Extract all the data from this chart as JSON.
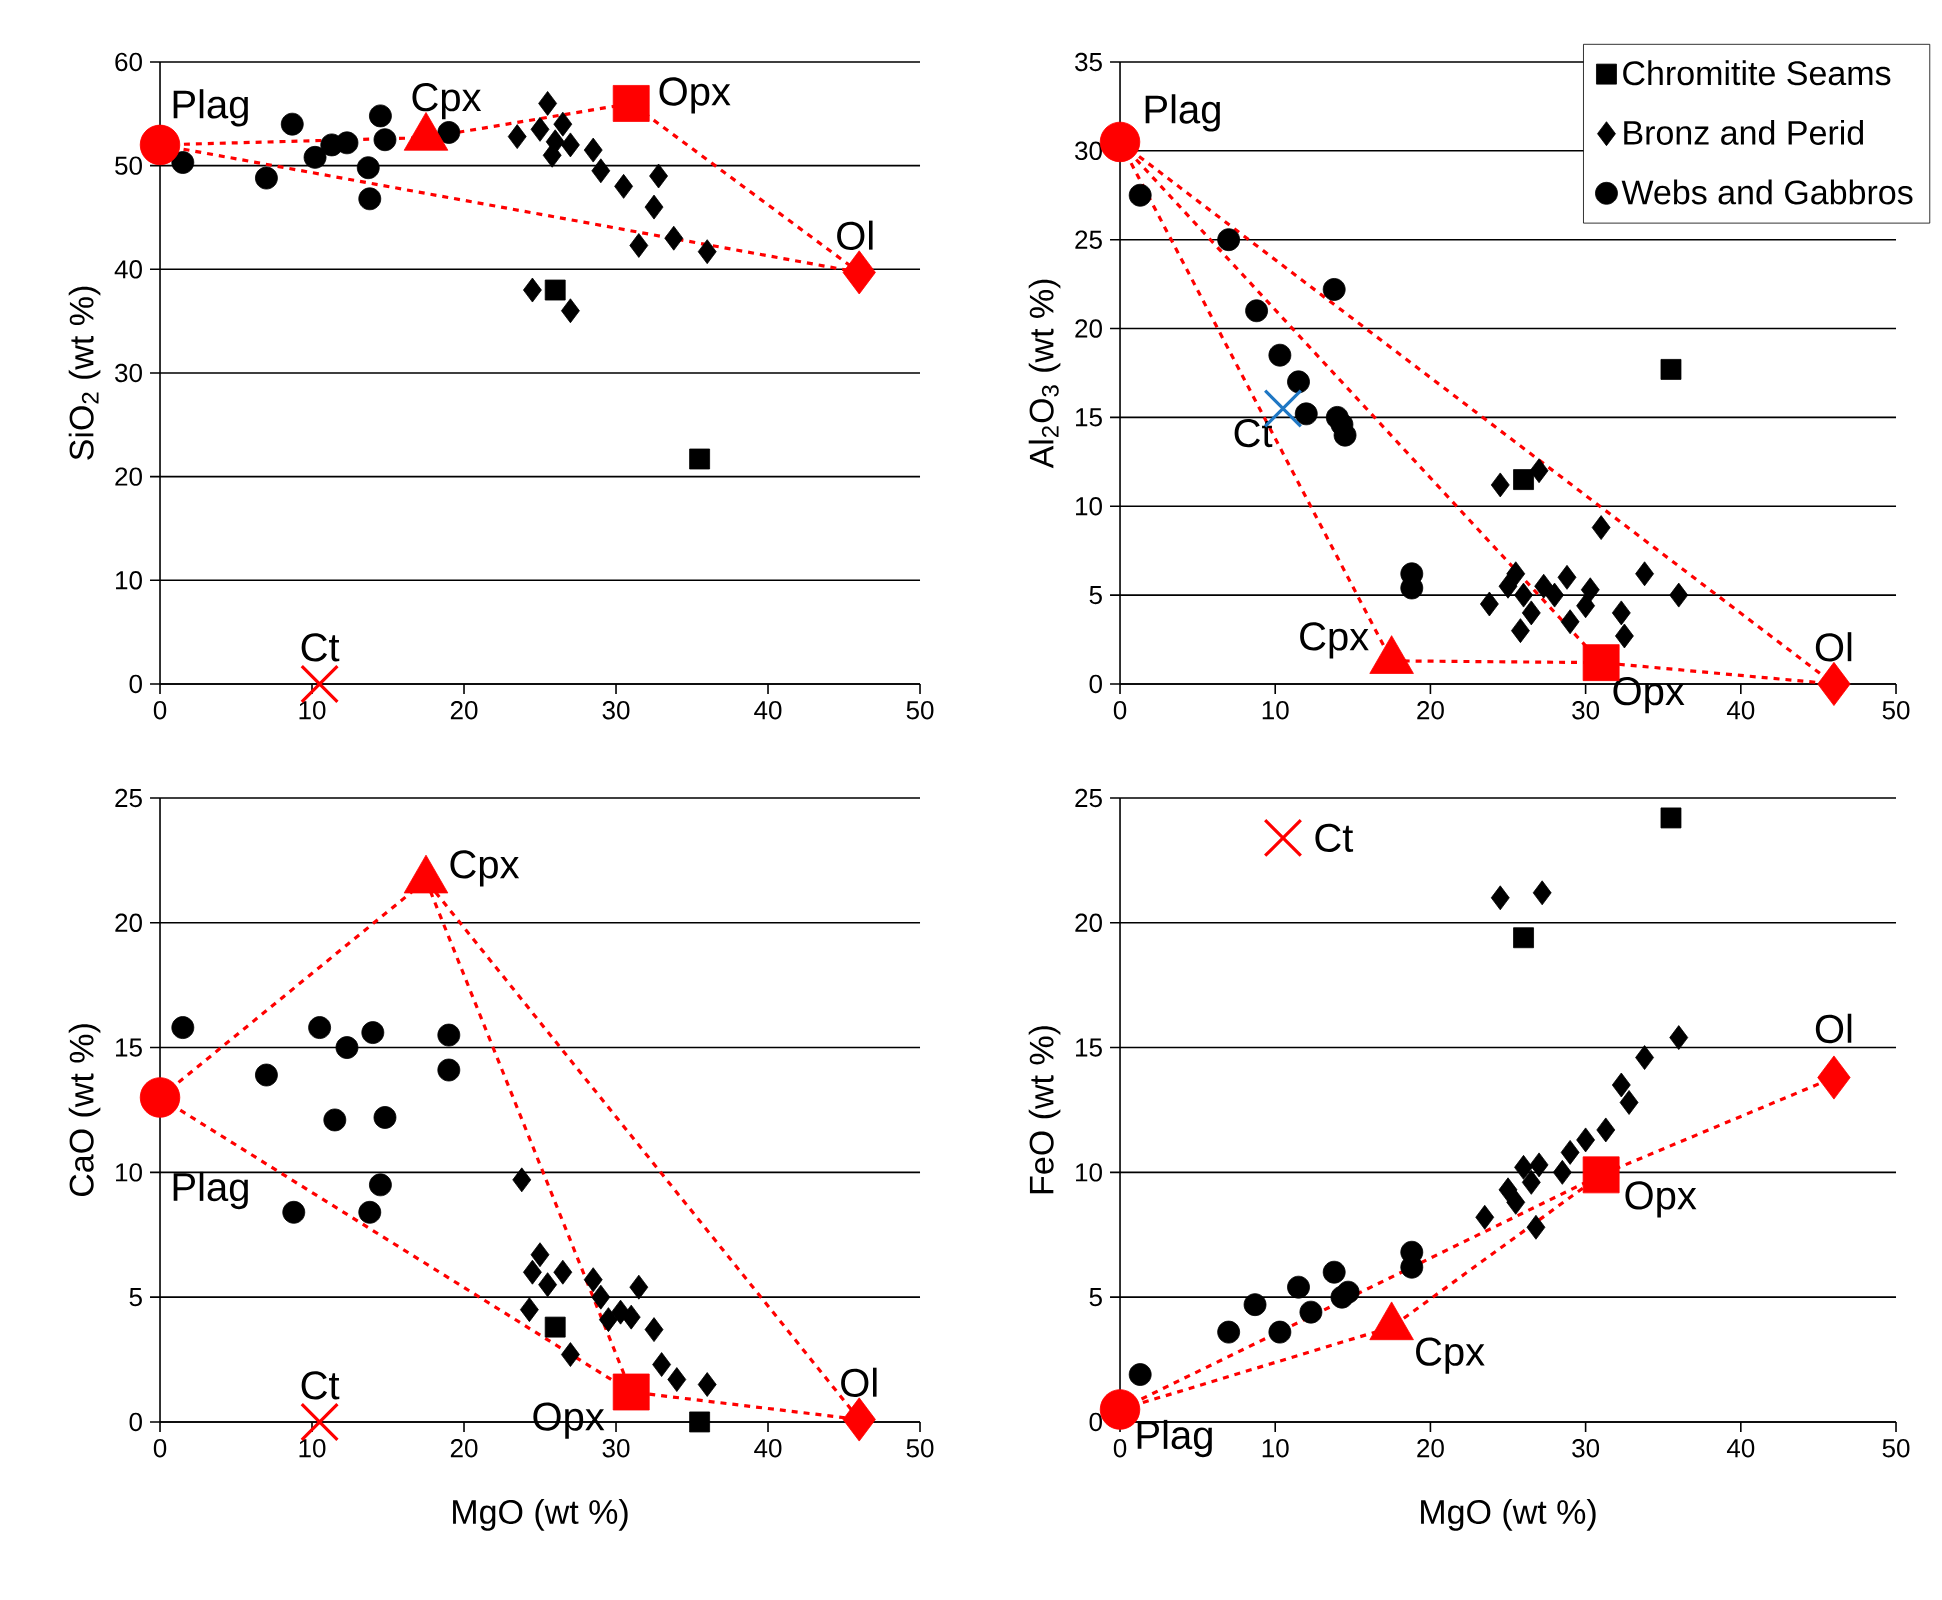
{
  "chart_data": [
    {
      "type": "scatter",
      "ylabel": "SiO$_{2}$ (wt %)",
      "xlim": [
        0,
        50
      ],
      "xticks": [
        0,
        10,
        20,
        30,
        40,
        50
      ],
      "ylim": [
        0,
        60
      ],
      "yticks": [
        0,
        10,
        20,
        30,
        40,
        50,
        60
      ],
      "grid": "y",
      "series": [
        {
          "type": "scatter",
          "marker": "square",
          "color": "#000000",
          "x": [
            26,
            35.5
          ],
          "values": [
            38,
            21.7
          ]
        },
        {
          "type": "scatter",
          "marker": "diamond",
          "color": "#000000",
          "x": [
            23.5,
            24.5,
            25,
            25.5,
            25.8,
            26,
            26.5,
            27,
            27,
            28.5,
            29,
            30.5,
            31.5,
            32.5,
            32.8,
            33.8,
            36
          ],
          "values": [
            52.8,
            38,
            53.5,
            56,
            51,
            52.3,
            54,
            36,
            52,
            51.5,
            49.5,
            48,
            42.3,
            46,
            49,
            43,
            41.7
          ]
        },
        {
          "type": "scatter",
          "marker": "circle",
          "color": "#000000",
          "x": [
            1.5,
            7,
            8.7,
            10.2,
            11.3,
            12.3,
            13.7,
            13.8,
            14.5,
            14.8,
            19
          ],
          "values": [
            50.3,
            48.8,
            54,
            50.8,
            52,
            52.2,
            49.8,
            46.8,
            54.8,
            52.5,
            53.2
          ]
        },
        {
          "type": "line",
          "line_style": "dashed",
          "marker": "none",
          "color": "#ff0000",
          "x": [
            0,
            17.5,
            31,
            46
          ],
          "values": [
            52,
            52.7,
            56,
            39.7
          ]
        },
        {
          "type": "line",
          "line_style": "dashed",
          "marker": "none",
          "color": "#ff0000",
          "x": [
            0,
            46
          ],
          "values": [
            52,
            39.7
          ]
        },
        {
          "type": "scatter",
          "marker": "circle",
          "color": "#ff0000",
          "x": [
            0
          ],
          "values": [
            52
          ]
        },
        {
          "type": "scatter",
          "marker": "triangle",
          "color": "#ff0000",
          "x": [
            17.5
          ],
          "values": [
            52.7
          ]
        },
        {
          "type": "scatter",
          "marker": "square",
          "color": "#ff0000",
          "x": [
            31
          ],
          "values": [
            56
          ]
        },
        {
          "type": "scatter",
          "marker": "diamond",
          "color": "#ff0000",
          "x": [
            46
          ],
          "values": [
            39.7
          ]
        },
        {
          "type": "scatter",
          "marker": "cross",
          "color": "#ff0000",
          "x": [
            10.5
          ],
          "values": [
            0
          ]
        }
      ],
      "annotations": [
        {
          "text": "Plag",
          "x": 0,
          "y": 52
        },
        {
          "text": "Cpx",
          "x": 17.5,
          "y": 52.7
        },
        {
          "text": "Opx",
          "x": 31,
          "y": 56
        },
        {
          "text": "Ol",
          "x": 46,
          "y": 39.7
        },
        {
          "text": "Ct",
          "x": 10.5,
          "y": 0
        }
      ]
    },
    {
      "type": "scatter",
      "ylabel": "Al$_{2}$O$_{3}$ (wt %)",
      "xlim": [
        0,
        50
      ],
      "xticks": [
        0,
        10,
        20,
        30,
        40,
        50
      ],
      "ylim": [
        0,
        35
      ],
      "yticks": [
        0,
        5,
        10,
        15,
        20,
        25,
        30,
        35
      ],
      "grid": "y",
      "legend": "top right",
      "series": [
        {
          "name": "Chromitite Seams",
          "type": "scatter",
          "marker": "square",
          "color": "#000000",
          "x": [
            26,
            35.5
          ],
          "values": [
            11.5,
            17.7
          ]
        },
        {
          "name": "Bronz and Perid",
          "type": "scatter",
          "marker": "diamond",
          "color": "#000000",
          "x": [
            24.5,
            27,
            31,
            33.8,
            36,
            23.8,
            25,
            25.5,
            25.8,
            26.5,
            27.3,
            28.8,
            29,
            30,
            30.3,
            32.3,
            32.5,
            26,
            28
          ],
          "values": [
            11.2,
            12,
            8.8,
            6.2,
            5,
            4.5,
            5.5,
            6.2,
            3,
            4,
            5.5,
            6,
            3.5,
            4.4,
            5.3,
            4,
            2.7,
            5,
            5
          ]
        },
        {
          "name": "Webs and Gabbros",
          "type": "scatter",
          "marker": "circle",
          "color": "#000000",
          "x": [
            1.3,
            7,
            8.8,
            10.3,
            11.5,
            12,
            13.8,
            14,
            14.3,
            14.5,
            18.8,
            18.8
          ],
          "values": [
            27.5,
            25,
            21,
            18.5,
            17,
            15.2,
            22.2,
            15,
            14.6,
            14,
            6.2,
            5.4
          ]
        },
        {
          "type": "line",
          "line_style": "dashed",
          "marker": "none",
          "color": "#ff0000",
          "x": [
            0,
            17.5,
            31,
            46
          ],
          "values": [
            30.5,
            1.3,
            1.2,
            0
          ]
        },
        {
          "type": "line",
          "line_style": "dashed",
          "marker": "none",
          "color": "#ff0000",
          "x": [
            0,
            31
          ],
          "values": [
            30.5,
            1.2
          ]
        },
        {
          "type": "line",
          "line_style": "dashed",
          "marker": "none",
          "color": "#ff0000",
          "x": [
            0,
            46
          ],
          "values": [
            30.5,
            0
          ]
        },
        {
          "type": "scatter",
          "marker": "circle",
          "color": "#ff0000",
          "x": [
            0
          ],
          "values": [
            30.5
          ]
        },
        {
          "type": "scatter",
          "marker": "triangle",
          "color": "#ff0000",
          "x": [
            17.5
          ],
          "values": [
            1.3
          ]
        },
        {
          "type": "scatter",
          "marker": "square",
          "color": "#ff0000",
          "x": [
            31
          ],
          "values": [
            1.2
          ]
        },
        {
          "type": "scatter",
          "marker": "diamond",
          "color": "#ff0000",
          "x": [
            46
          ],
          "values": [
            0
          ]
        },
        {
          "type": "scatter",
          "marker": "cross",
          "color": "#1f77c4",
          "x": [
            10.5
          ],
          "values": [
            15.5
          ]
        }
      ],
      "annotations": [
        {
          "text": "Plag",
          "x": 0,
          "y": 30.5
        },
        {
          "text": "Cpx",
          "x": 17.5,
          "y": 1.3
        },
        {
          "text": "Opx",
          "x": 31,
          "y": 1.2
        },
        {
          "text": "Ol",
          "x": 46,
          "y": 0
        },
        {
          "text": "Ct",
          "x": 10.5,
          "y": 15.5
        }
      ]
    },
    {
      "type": "scatter",
      "xlabel": "MgO (wt %)",
      "ylabel": "CaO (wt %)",
      "xlim": [
        0,
        50
      ],
      "xticks": [
        0,
        10,
        20,
        30,
        40,
        50
      ],
      "ylim": [
        0,
        25
      ],
      "yticks": [
        0,
        5,
        10,
        15,
        20,
        25
      ],
      "grid": "y",
      "series": [
        {
          "type": "scatter",
          "marker": "square",
          "color": "#000000",
          "x": [
            26,
            35.5
          ],
          "values": [
            3.8,
            0
          ]
        },
        {
          "type": "scatter",
          "marker": "diamond",
          "color": "#000000",
          "x": [
            23.8,
            25,
            24.5,
            24.3,
            25.5,
            26.5,
            27,
            28.5,
            29,
            29.5,
            30.3,
            31,
            31.5,
            32.5,
            33,
            34,
            36
          ],
          "values": [
            9.7,
            6.7,
            6,
            4.5,
            5.5,
            6,
            2.7,
            5.7,
            5,
            4.1,
            4.4,
            4.2,
            5.4,
            3.7,
            2.3,
            1.7,
            1.5
          ]
        },
        {
          "type": "scatter",
          "marker": "circle",
          "color": "#000000",
          "x": [
            1.5,
            7,
            8.8,
            10.5,
            11.5,
            12.3,
            13.8,
            14,
            14.5,
            14.8,
            19,
            19
          ],
          "values": [
            15.8,
            13.9,
            8.4,
            15.8,
            12.1,
            15,
            8.4,
            15.6,
            9.5,
            12.2,
            15.5,
            14.1
          ]
        },
        {
          "type": "line",
          "line_style": "dashed",
          "marker": "none",
          "color": "#ff0000",
          "x": [
            0,
            17.5,
            46
          ],
          "values": [
            13,
            21.7,
            0.1
          ]
        },
        {
          "type": "line",
          "line_style": "dashed",
          "marker": "none",
          "color": "#ff0000",
          "x": [
            0,
            31,
            46
          ],
          "values": [
            13,
            1.2,
            0.1
          ]
        },
        {
          "type": "line",
          "line_style": "dashed",
          "marker": "none",
          "color": "#ff0000",
          "x": [
            17.5,
            31
          ],
          "values": [
            21.7,
            1.2
          ]
        },
        {
          "type": "scatter",
          "marker": "circle",
          "color": "#ff0000",
          "x": [
            0
          ],
          "values": [
            13
          ]
        },
        {
          "type": "scatter",
          "marker": "triangle",
          "color": "#ff0000",
          "x": [
            17.5
          ],
          "values": [
            21.7
          ]
        },
        {
          "type": "scatter",
          "marker": "square",
          "color": "#ff0000",
          "x": [
            31
          ],
          "values": [
            1.2
          ]
        },
        {
          "type": "scatter",
          "marker": "diamond",
          "color": "#ff0000",
          "x": [
            46
          ],
          "values": [
            0.1
          ]
        },
        {
          "type": "scatter",
          "marker": "cross",
          "color": "#ff0000",
          "x": [
            10.5
          ],
          "values": [
            0
          ]
        }
      ],
      "annotations": [
        {
          "text": "Plag",
          "x": 0,
          "y": 13
        },
        {
          "text": "Cpx",
          "x": 17.5,
          "y": 21.7
        },
        {
          "text": "Opx",
          "x": 31,
          "y": 1.2
        },
        {
          "text": "Ol",
          "x": 46,
          "y": 0.1
        },
        {
          "text": "Ct",
          "x": 10.5,
          "y": 0
        }
      ]
    },
    {
      "type": "scatter",
      "xlabel": "MgO (wt %)",
      "ylabel": "FeO (wt %)",
      "xlim": [
        0,
        50
      ],
      "xticks": [
        0,
        10,
        20,
        30,
        40,
        50
      ],
      "ylim": [
        0,
        25
      ],
      "yticks": [
        0,
        5,
        10,
        15,
        20,
        25
      ],
      "grid": "y",
      "series": [
        {
          "type": "scatter",
          "marker": "square",
          "color": "#000000",
          "x": [
            26,
            35.5
          ],
          "values": [
            19.4,
            24.2
          ]
        },
        {
          "type": "scatter",
          "marker": "diamond",
          "color": "#000000",
          "x": [
            23.5,
            24.5,
            25,
            25.5,
            26,
            26.5,
            27,
            27.2,
            26.8,
            28.5,
            29,
            30,
            31.3,
            32.3,
            32.8,
            33.8,
            36
          ],
          "values": [
            8.2,
            21,
            9.3,
            8.8,
            10.2,
            9.6,
            10.3,
            21.2,
            7.8,
            10,
            10.8,
            11.3,
            11.7,
            13.5,
            12.8,
            14.6,
            15.4
          ]
        },
        {
          "type": "scatter",
          "marker": "circle",
          "color": "#000000",
          "x": [
            1.3,
            7,
            8.7,
            10.3,
            11.5,
            12.3,
            13.8,
            14.3,
            14.7,
            18.8,
            18.8
          ],
          "values": [
            1.9,
            3.6,
            4.7,
            3.6,
            5.4,
            4.4,
            6,
            5,
            5.2,
            6.8,
            6.2
          ]
        },
        {
          "type": "line",
          "line_style": "dashed",
          "marker": "none",
          "color": "#ff0000",
          "x": [
            0,
            31,
            46
          ],
          "values": [
            0.5,
            9.9,
            13.8
          ]
        },
        {
          "type": "line",
          "line_style": "dashed",
          "marker": "none",
          "color": "#ff0000",
          "x": [
            0,
            17.5,
            31
          ],
          "values": [
            0.5,
            3.8,
            9.9
          ]
        },
        {
          "type": "scatter",
          "marker": "circle",
          "color": "#ff0000",
          "x": [
            0
          ],
          "values": [
            0.5
          ]
        },
        {
          "type": "scatter",
          "marker": "triangle",
          "color": "#ff0000",
          "x": [
            17.5
          ],
          "values": [
            3.8
          ]
        },
        {
          "type": "scatter",
          "marker": "square",
          "color": "#ff0000",
          "x": [
            31
          ],
          "values": [
            9.9
          ]
        },
        {
          "type": "scatter",
          "marker": "diamond",
          "color": "#ff0000",
          "x": [
            46
          ],
          "values": [
            13.8
          ]
        },
        {
          "type": "scatter",
          "marker": "cross",
          "color": "#ff0000",
          "x": [
            10.5
          ],
          "values": [
            23.4
          ]
        }
      ],
      "annotations": [
        {
          "text": "Plag",
          "x": 0,
          "y": 0.5
        },
        {
          "text": "Cpx",
          "x": 17.5,
          "y": 3.8
        },
        {
          "text": "Opx",
          "x": 31,
          "y": 9.9
        },
        {
          "text": "Ol",
          "x": 46,
          "y": 13.8
        },
        {
          "text": "Ct",
          "x": 10.5,
          "y": 23.4
        }
      ]
    }
  ]
}
